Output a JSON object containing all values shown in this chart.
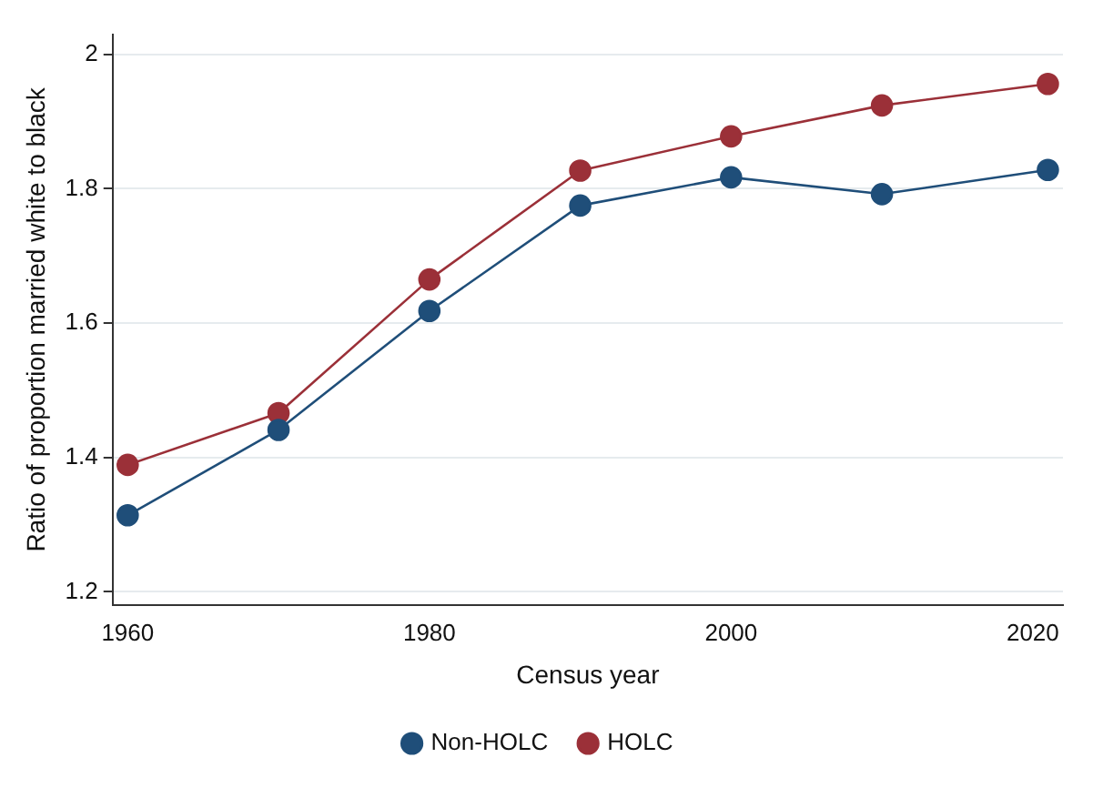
{
  "chart_data": {
    "type": "line",
    "xlabel": "Census year",
    "ylabel": "Ratio of proportion married white to black",
    "x": [
      1960,
      1970,
      1980,
      1990,
      2000,
      2010,
      2021
    ],
    "series": [
      {
        "name": "Non-HOLC",
        "color": "#1f4e79",
        "values": [
          1.314,
          1.441,
          1.618,
          1.775,
          1.817,
          1.792,
          1.828
        ]
      },
      {
        "name": "HOLC",
        "color": "#9b3038",
        "values": [
          1.389,
          1.466,
          1.665,
          1.827,
          1.878,
          1.924,
          1.956
        ]
      }
    ],
    "xlim": [
      1959,
      2022
    ],
    "xticks": [
      1960,
      1980,
      2000,
      2020
    ],
    "ylim": [
      1.18,
      2.03
    ],
    "yticks": [
      {
        "value": 1.2,
        "label": "1.2"
      },
      {
        "value": 1.4,
        "label": "1.4"
      },
      {
        "value": 1.6,
        "label": "1.6"
      },
      {
        "value": 1.8,
        "label": "1.8"
      },
      {
        "value": 2,
        "label": "2"
      }
    ],
    "grid": "y",
    "legend": "bottom",
    "marker": "circle",
    "line_style": "solid"
  }
}
